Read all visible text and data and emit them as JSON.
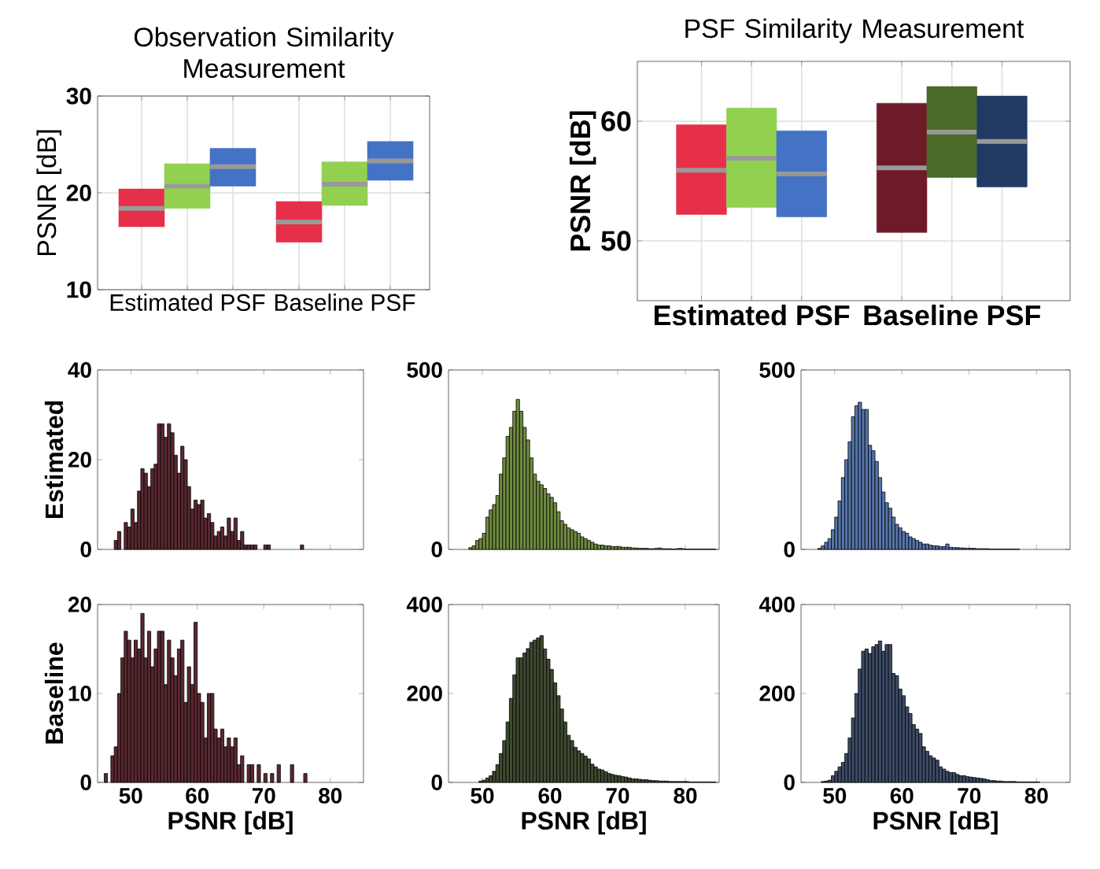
{
  "chart_data": [
    {
      "type": "box",
      "title": "Observation Similarity Measurement",
      "ylabel": "PSNR [dB]",
      "categories": [
        "Estimated PSF",
        "Baseline PSF"
      ],
      "ylim": [
        10,
        30
      ],
      "yticks": [
        10,
        20,
        30
      ],
      "grid": true,
      "series": [
        {
          "colors": [
            "#e63049",
            "#e63049"
          ],
          "boxes": [
            {
              "q1": 16.5,
              "median": 18.4,
              "q3": 20.4
            },
            {
              "q1": 14.9,
              "median": 17.0,
              "q3": 19.1
            }
          ]
        },
        {
          "colors": [
            "#92d050",
            "#92d050"
          ],
          "boxes": [
            {
              "q1": 18.4,
              "median": 20.7,
              "q3": 23.0
            },
            {
              "q1": 18.7,
              "median": 20.9,
              "q3": 23.2
            }
          ]
        },
        {
          "colors": [
            "#4472c4",
            "#4472c4"
          ],
          "boxes": [
            {
              "q1": 20.7,
              "median": 22.7,
              "q3": 24.6
            },
            {
              "q1": 21.3,
              "median": 23.3,
              "q3": 25.3
            }
          ]
        }
      ]
    },
    {
      "type": "box",
      "title": "PSF Similarity Measurement",
      "ylabel": "PSNR [dB]",
      "categories": [
        "Estimated PSF",
        "Baseline PSF"
      ],
      "ylim": [
        45,
        65
      ],
      "yticks": [
        50,
        60
      ],
      "grid": true,
      "series": [
        {
          "colors": [
            "#e63049",
            "#6e1a28"
          ],
          "boxes": [
            {
              "q1": 52.2,
              "median": 55.9,
              "q3": 59.7
            },
            {
              "q1": 50.7,
              "median": 56.1,
              "q3": 61.5
            }
          ]
        },
        {
          "colors": [
            "#92d050",
            "#4a6a28"
          ],
          "boxes": [
            {
              "q1": 52.8,
              "median": 56.9,
              "q3": 61.1
            },
            {
              "q1": 55.3,
              "median": 59.1,
              "q3": 62.9
            }
          ]
        },
        {
          "colors": [
            "#4472c4",
            "#213a64"
          ],
          "boxes": [
            {
              "q1": 52.0,
              "median": 55.6,
              "q3": 59.2
            },
            {
              "q1": 54.5,
              "median": 58.3,
              "q3": 62.1
            }
          ]
        }
      ]
    },
    {
      "type": "histogram",
      "ylabel": "Estimated",
      "color": "#5a2830",
      "xlim": [
        45,
        85
      ],
      "xticks": [
        50,
        60,
        70,
        80
      ],
      "ylim": [
        0,
        40
      ],
      "yticks": [
        0,
        20,
        40
      ],
      "tick_labels": "y",
      "bins": [
        47.5,
        48,
        48.5,
        49,
        49.5,
        50,
        50.5,
        51,
        51.5,
        52,
        52.5,
        53,
        53.5,
        54,
        54.5,
        55,
        55.5,
        56,
        56.5,
        57,
        57.5,
        58,
        58.5,
        59,
        59.5,
        60,
        60.5,
        61,
        61.5,
        62,
        62.5,
        63,
        63.5,
        64,
        64.5,
        65,
        65.5,
        66,
        66.5,
        67,
        67.5,
        68,
        68.5,
        69,
        70,
        70.5,
        71,
        75.5,
        76
      ],
      "values": [
        2,
        4,
        0,
        6,
        5,
        9,
        6,
        13,
        18,
        17,
        14,
        18,
        19,
        28,
        28,
        25,
        28,
        26,
        21,
        17,
        23,
        20,
        14,
        9,
        11,
        10,
        11,
        7,
        8,
        6,
        3,
        4,
        5,
        3,
        7,
        4,
        7,
        2,
        4,
        1,
        1,
        1,
        1,
        0,
        1,
        1,
        0,
        1
      ]
    },
    {
      "type": "histogram",
      "color": "#6e8a3e",
      "xlim": [
        45,
        85
      ],
      "xticks": [
        50,
        60,
        70,
        80
      ],
      "ylim": [
        0,
        500
      ],
      "yticks": [
        0,
        500
      ],
      "tick_labels": "y",
      "bins": [
        48,
        48.5,
        49,
        49.5,
        50,
        50.5,
        51,
        51.5,
        52,
        52.5,
        53,
        53.5,
        54,
        54.5,
        55,
        55.5,
        56,
        56.5,
        57,
        57.5,
        58,
        58.5,
        59,
        59.5,
        60,
        60.5,
        61,
        61.5,
        62,
        62.5,
        63,
        63.5,
        64,
        64.5,
        65,
        65.5,
        66,
        66.5,
        67,
        67.5,
        68,
        68.5,
        69,
        69.5,
        70,
        70.5,
        71,
        71.5,
        72,
        72.5,
        73,
        73.5,
        74,
        74.5,
        75,
        75.5,
        76,
        76.5,
        77,
        77.5,
        78,
        78.5,
        79,
        79.5,
        80,
        80.5,
        81,
        81.5,
        82,
        82.5,
        83,
        83.5,
        84,
        84.5,
        85
      ],
      "values": [
        5,
        10,
        25,
        30,
        45,
        90,
        110,
        125,
        150,
        210,
        255,
        315,
        340,
        385,
        418,
        385,
        340,
        305,
        255,
        210,
        190,
        180,
        170,
        155,
        145,
        130,
        105,
        80,
        70,
        60,
        55,
        50,
        45,
        35,
        30,
        25,
        20,
        15,
        12,
        12,
        10,
        10,
        8,
        8,
        8,
        6,
        6,
        6,
        4,
        4,
        3,
        3,
        3,
        2,
        2,
        3,
        4,
        2,
        2,
        2,
        1,
        2,
        3,
        2,
        1,
        1,
        1,
        1,
        1,
        1,
        1,
        1,
        1,
        0
      ]
    },
    {
      "type": "histogram",
      "color": "#5674aa",
      "xlim": [
        45,
        85
      ],
      "xticks": [
        50,
        60,
        70,
        80
      ],
      "ylim": [
        0,
        500
      ],
      "yticks": [
        0,
        500
      ],
      "tick_labels": "y",
      "bins": [
        47.5,
        48,
        48.5,
        49,
        49.5,
        50,
        50.5,
        51,
        51.5,
        52,
        52.5,
        53,
        53.5,
        54,
        54.5,
        55,
        55.5,
        56,
        56.5,
        57,
        57.5,
        58,
        58.5,
        59,
        59.5,
        60,
        60.5,
        61,
        61.5,
        62,
        62.5,
        63,
        63.5,
        64,
        64.5,
        65,
        65.5,
        66,
        66.5,
        67,
        67.5,
        68,
        68.5,
        69,
        69.5,
        70,
        70.5,
        71,
        71.5,
        72,
        72.5,
        73,
        73.5,
        74,
        74.5,
        75,
        75.5,
        76,
        76.5,
        77,
        77.5,
        78
      ],
      "values": [
        3,
        10,
        20,
        30,
        55,
        90,
        135,
        200,
        250,
        300,
        370,
        400,
        410,
        390,
        390,
        290,
        275,
        245,
        200,
        160,
        130,
        115,
        90,
        70,
        60,
        50,
        45,
        35,
        30,
        25,
        20,
        15,
        15,
        12,
        10,
        10,
        8,
        8,
        15,
        6,
        5,
        5,
        4,
        4,
        3,
        3,
        3,
        2,
        2,
        2,
        2,
        1,
        1,
        1,
        1,
        1,
        1,
        1,
        1,
        1,
        0
      ]
    },
    {
      "type": "histogram",
      "ylabel": "Baseline",
      "xlabel": "PSNR [dB]",
      "color": "#5a2830",
      "xlim": [
        45,
        85
      ],
      "xticks": [
        50,
        60,
        70,
        80
      ],
      "ylim": [
        0,
        20
      ],
      "yticks": [
        0,
        10,
        20
      ],
      "bins": [
        46,
        46.5,
        47,
        47.5,
        48,
        48.5,
        49,
        49.5,
        50,
        50.5,
        51,
        51.5,
        52,
        52.5,
        53,
        53.5,
        54,
        54.5,
        55,
        55.5,
        56,
        56.5,
        57,
        57.5,
        58,
        58.5,
        59,
        59.5,
        60,
        60.5,
        61,
        61.5,
        62,
        62.5,
        63,
        63.5,
        64,
        64.5,
        65,
        65.5,
        66,
        66.5,
        67,
        67.5,
        68,
        68.5,
        69,
        69.5,
        70,
        70.5,
        71,
        71.5,
        72,
        72.5,
        73,
        73.5,
        74,
        74.5,
        75,
        75.5,
        76,
        76.5
      ],
      "values": [
        1,
        0,
        3,
        4,
        10,
        14,
        17,
        16,
        14,
        16,
        15,
        19,
        14,
        17,
        13,
        15,
        17,
        17,
        11,
        16,
        14,
        12,
        15,
        16,
        9,
        13,
        11,
        18,
        10,
        9,
        5,
        10,
        10,
        6,
        5,
        6,
        4,
        5,
        4,
        5,
        2,
        3,
        0,
        2,
        2,
        0,
        2,
        0,
        1,
        0,
        1,
        0,
        2,
        0,
        0,
        0,
        2,
        0,
        0,
        0,
        1
      ]
    },
    {
      "type": "histogram",
      "xlabel": "PSNR [dB]",
      "color": "#3e4a30",
      "xlim": [
        45,
        85
      ],
      "xticks": [
        50,
        60,
        70,
        80
      ],
      "ylim": [
        0,
        400
      ],
      "yticks": [
        0,
        200,
        400
      ],
      "bins": [
        49.5,
        50,
        50.5,
        51,
        51.5,
        52,
        52.5,
        53,
        53.5,
        54,
        54.5,
        55,
        55.5,
        56,
        56.5,
        57,
        57.5,
        58,
        58.5,
        59,
        59.5,
        60,
        60.5,
        61,
        61.5,
        62,
        62.5,
        63,
        63.5,
        64,
        64.5,
        65,
        65.5,
        66,
        66.5,
        67,
        67.5,
        68,
        68.5,
        69,
        69.5,
        70,
        70.5,
        71,
        71.5,
        72,
        72.5,
        73,
        73.5,
        74,
        74.5,
        75,
        75.5,
        76,
        76.5,
        77,
        77.5,
        78,
        78.5,
        79,
        79.5,
        80,
        80.5,
        81,
        81.5,
        82,
        82.5,
        83,
        83.5,
        84,
        84.5
      ],
      "values": [
        3,
        5,
        10,
        15,
        25,
        40,
        65,
        94,
        136,
        189,
        242,
        280,
        280,
        291,
        301,
        315,
        320,
        325,
        330,
        300,
        277,
        254,
        224,
        195,
        165,
        136,
        106,
        94,
        79,
        71,
        65,
        59,
        53,
        41,
        35,
        30,
        28,
        24,
        20,
        18,
        16,
        15,
        13,
        12,
        10,
        8,
        8,
        7,
        6,
        6,
        5,
        4,
        4,
        3,
        3,
        3,
        2,
        2,
        2,
        2,
        2,
        2,
        1,
        1,
        1,
        1,
        1,
        1,
        1,
        1
      ]
    },
    {
      "type": "histogram",
      "xlabel": "PSNR [dB]",
      "color": "#3c4a66",
      "xlim": [
        45,
        85
      ],
      "xticks": [
        50,
        60,
        70,
        80
      ],
      "ylim": [
        0,
        400
      ],
      "yticks": [
        0,
        200,
        400
      ],
      "bins": [
        48,
        48.5,
        49,
        49.5,
        50,
        50.5,
        51,
        51.5,
        52,
        52.5,
        53,
        53.5,
        54,
        54.5,
        55,
        55.5,
        56,
        56.5,
        57,
        57.5,
        58,
        58.5,
        59,
        59.5,
        60,
        60.5,
        61,
        61.5,
        62,
        62.5,
        63,
        63.5,
        64,
        64.5,
        65,
        65.5,
        66,
        66.5,
        67,
        67.5,
        68,
        68.5,
        69,
        69.5,
        70,
        70.5,
        71,
        71.5,
        72,
        72.5,
        73,
        73.5,
        74,
        74.5,
        75,
        75.5,
        76,
        76.5,
        77,
        77.5,
        78,
        78.5,
        79,
        79.5,
        80,
        80.5,
        81
      ],
      "values": [
        2,
        3,
        5,
        15,
        25,
        35,
        45,
        65,
        100,
        145,
        200,
        255,
        295,
        300,
        290,
        305,
        310,
        318,
        295,
        310,
        310,
        245,
        240,
        210,
        195,
        170,
        155,
        130,
        120,
        110,
        80,
        70,
        60,
        55,
        50,
        35,
        30,
        25,
        22,
        22,
        18,
        15,
        15,
        13,
        12,
        11,
        10,
        9,
        8,
        6,
        4,
        4,
        3,
        3,
        2,
        2,
        2,
        2,
        1,
        1,
        1,
        1,
        1,
        1,
        1,
        0
      ]
    }
  ]
}
